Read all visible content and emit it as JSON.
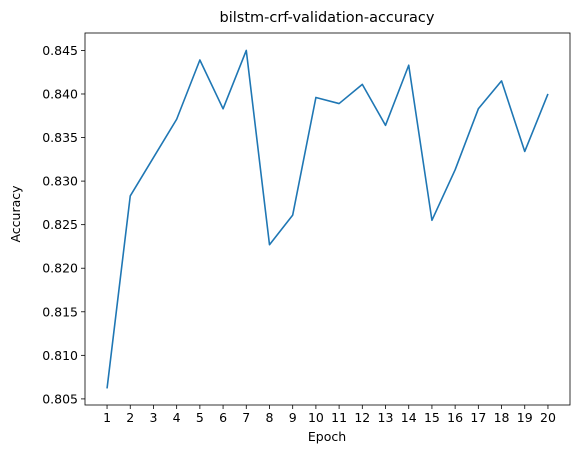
{
  "chart_data": {
    "type": "line",
    "title": "bilstm-crf-validation-accuracy",
    "xlabel": "Epoch",
    "ylabel": "Accuracy",
    "x": [
      1,
      2,
      3,
      4,
      5,
      6,
      7,
      8,
      9,
      10,
      11,
      12,
      13,
      14,
      15,
      16,
      17,
      18,
      19,
      20
    ],
    "xticks": [
      "1",
      "2",
      "3",
      "4",
      "5",
      "6",
      "7",
      "8",
      "9",
      "10",
      "11",
      "12",
      "13",
      "14",
      "15",
      "16",
      "17",
      "18",
      "19",
      "20"
    ],
    "yticks": [
      "0.805",
      "0.810",
      "0.815",
      "0.820",
      "0.825",
      "0.830",
      "0.835",
      "0.840",
      "0.845"
    ],
    "ytick_values": [
      0.805,
      0.81,
      0.815,
      0.82,
      0.825,
      0.83,
      0.835,
      0.84,
      0.845
    ],
    "xlim": [
      0.05,
      20.95
    ],
    "ylim": [
      0.8043,
      0.847
    ],
    "grid": false,
    "series": [
      {
        "color": "#1f77b4",
        "values": [
          0.8062,
          0.8283,
          0.8327,
          0.8371,
          0.8439,
          0.8383,
          0.845,
          0.8227,
          0.8261,
          0.8396,
          0.8389,
          0.8411,
          0.8364,
          0.8433,
          0.8255,
          0.8313,
          0.8383,
          0.8415,
          0.8334,
          0.84
        ]
      }
    ]
  }
}
